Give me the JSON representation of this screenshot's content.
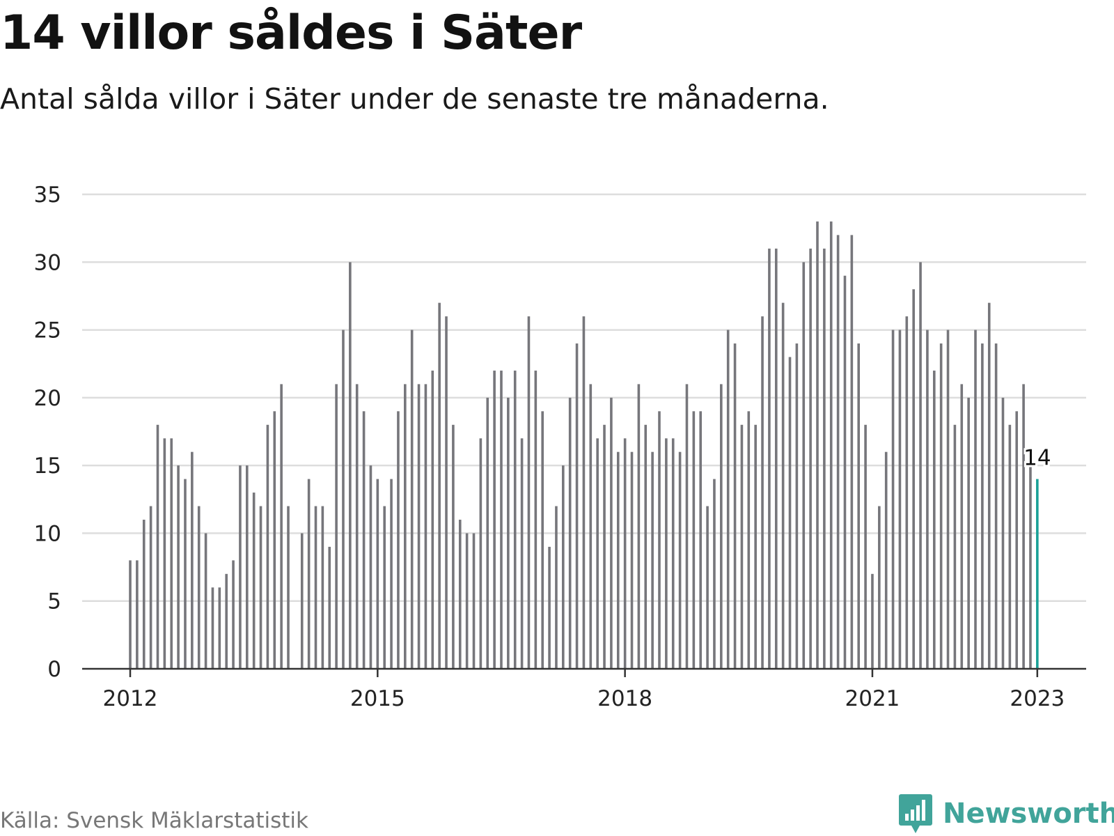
{
  "title": "14 villor såldes i Säter",
  "subtitle": "Antal sålda villor i Säter under de senaste tre månaderna.",
  "source": "Källa: Svensk Mäklarstatistik",
  "brand": {
    "name": "Newsworthy",
    "color": "#41a49a",
    "logo_icon": "bar-chart-speech-bubble-icon"
  },
  "colors": {
    "bar": "#76767b",
    "highlight": "#1aa197",
    "grid": "#dddddd",
    "axis": "#333333"
  },
  "chart_data": {
    "type": "bar",
    "title": "14 villor såldes i Säter",
    "xlabel": "",
    "ylabel": "",
    "ylim": [
      0,
      35
    ],
    "yticks": [
      0,
      5,
      10,
      15,
      20,
      25,
      30,
      35
    ],
    "xtick_labels": [
      "2012",
      "2015",
      "2018",
      "2021",
      "2023"
    ],
    "grid": true,
    "x": [
      "2012-01",
      "2012-02",
      "2012-03",
      "2012-04",
      "2012-05",
      "2012-06",
      "2012-07",
      "2012-08",
      "2012-09",
      "2012-10",
      "2012-11",
      "2012-12",
      "2013-01",
      "2013-02",
      "2013-03",
      "2013-04",
      "2013-05",
      "2013-06",
      "2013-07",
      "2013-08",
      "2013-09",
      "2013-10",
      "2013-11",
      "2013-12",
      "2014-01",
      "2014-02",
      "2014-03",
      "2014-04",
      "2014-05",
      "2014-06",
      "2014-07",
      "2014-08",
      "2014-09",
      "2014-10",
      "2014-11",
      "2014-12",
      "2015-01",
      "2015-02",
      "2015-03",
      "2015-04",
      "2015-05",
      "2015-06",
      "2015-07",
      "2015-08",
      "2015-09",
      "2015-10",
      "2015-11",
      "2015-12",
      "2016-01",
      "2016-02",
      "2016-03",
      "2016-04",
      "2016-05",
      "2016-06",
      "2016-07",
      "2016-08",
      "2016-09",
      "2016-10",
      "2016-11",
      "2016-12",
      "2017-01",
      "2017-02",
      "2017-03",
      "2017-04",
      "2017-05",
      "2017-06",
      "2017-07",
      "2017-08",
      "2017-09",
      "2017-10",
      "2017-11",
      "2017-12",
      "2018-01",
      "2018-02",
      "2018-03",
      "2018-04",
      "2018-05",
      "2018-06",
      "2018-07",
      "2018-08",
      "2018-09",
      "2018-10",
      "2018-11",
      "2018-12",
      "2019-01",
      "2019-02",
      "2019-03",
      "2019-04",
      "2019-05",
      "2019-06",
      "2019-07",
      "2019-08",
      "2019-09",
      "2019-10",
      "2019-11",
      "2019-12",
      "2020-01",
      "2020-02",
      "2020-03",
      "2020-04",
      "2020-05",
      "2020-06",
      "2020-07",
      "2020-08",
      "2020-09",
      "2020-10",
      "2020-11",
      "2020-12",
      "2021-01",
      "2021-02",
      "2021-03",
      "2021-04",
      "2021-05",
      "2021-06",
      "2021-07",
      "2021-08",
      "2021-09",
      "2021-10",
      "2021-11",
      "2021-12",
      "2022-01",
      "2022-02",
      "2022-03",
      "2022-04",
      "2022-05",
      "2022-06",
      "2022-07",
      "2022-08",
      "2022-09",
      "2022-10",
      "2022-11",
      "2022-12",
      "2023-01"
    ],
    "values": [
      8,
      8,
      11,
      12,
      18,
      17,
      17,
      15,
      14,
      16,
      12,
      10,
      6,
      6,
      7,
      8,
      15,
      15,
      13,
      12,
      18,
      19,
      21,
      12,
      null,
      10,
      14,
      12,
      12,
      9,
      21,
      25,
      30,
      21,
      19,
      15,
      14,
      12,
      14,
      19,
      21,
      25,
      21,
      21,
      22,
      27,
      26,
      18,
      11,
      10,
      10,
      17,
      20,
      22,
      22,
      20,
      22,
      17,
      26,
      22,
      19,
      9,
      12,
      15,
      20,
      24,
      26,
      21,
      17,
      18,
      20,
      16,
      17,
      16,
      21,
      18,
      16,
      19,
      17,
      17,
      16,
      21,
      19,
      19,
      12,
      14,
      21,
      25,
      24,
      18,
      19,
      18,
      26,
      31,
      31,
      27,
      23,
      24,
      30,
      31,
      33,
      31,
      33,
      32,
      29,
      32,
      24,
      18,
      7,
      12,
      16,
      25,
      25,
      26,
      28,
      30,
      25,
      22,
      24,
      25,
      18,
      21,
      20,
      25,
      24,
      27,
      24,
      20,
      18,
      19,
      21,
      15,
      14
    ],
    "highlight": {
      "x": "2023-01",
      "value": 14,
      "label": "14"
    }
  }
}
